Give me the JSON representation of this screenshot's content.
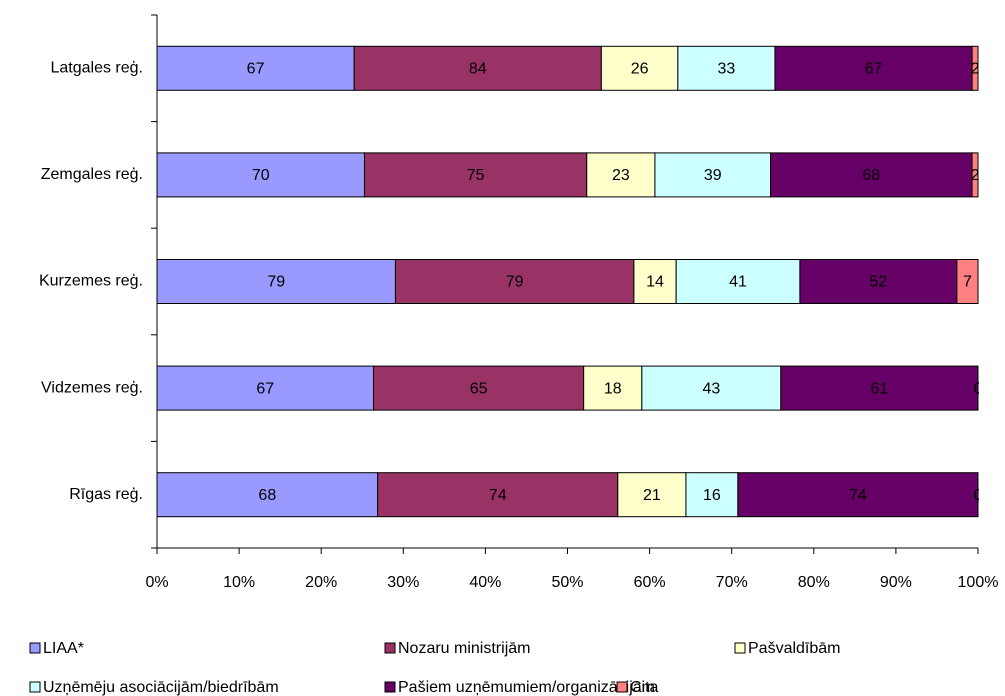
{
  "chart_data": {
    "type": "bar",
    "orientation": "horizontal",
    "stacking": "percent",
    "categories": [
      "Latgales reģ.",
      "Zemgales reģ.",
      "Kurzemes reģ.",
      "Vidzemes reģ.",
      "Rīgas reģ."
    ],
    "series": [
      {
        "name": "LIAA*",
        "color": "#9999ff",
        "values": [
          67,
          70,
          79,
          67,
          68
        ]
      },
      {
        "name": "Nozaru ministrijām",
        "color": "#993366",
        "values": [
          84,
          75,
          79,
          65,
          74
        ]
      },
      {
        "name": "Pašvaldībām",
        "color": "#ffffcc",
        "values": [
          26,
          23,
          14,
          18,
          21
        ]
      },
      {
        "name": "Uzņēmēju asociācijām/biedrībām",
        "color": "#ccffff",
        "values": [
          33,
          39,
          41,
          43,
          16
        ]
      },
      {
        "name": "Pašiem uzņēmumiem/organizācijām",
        "color": "#660066",
        "values": [
          67,
          68,
          52,
          61,
          74
        ]
      },
      {
        "name": "Cita",
        "color": "#ff8080",
        "values": [
          2,
          2,
          7,
          0,
          0
        ]
      }
    ],
    "xlim": [
      0,
      100
    ],
    "xticks": [
      {
        "value": 0,
        "label": "0%"
      },
      {
        "value": 10,
        "label": "10%"
      },
      {
        "value": 20,
        "label": "20%"
      },
      {
        "value": 30,
        "label": "30%"
      },
      {
        "value": 40,
        "label": "40%"
      },
      {
        "value": 50,
        "label": "50%"
      },
      {
        "value": 60,
        "label": "60%"
      },
      {
        "value": 70,
        "label": "70%"
      },
      {
        "value": 80,
        "label": "80%"
      },
      {
        "value": 90,
        "label": "90%"
      },
      {
        "value": 100,
        "label": "100%"
      }
    ],
    "legend": "bottom"
  }
}
